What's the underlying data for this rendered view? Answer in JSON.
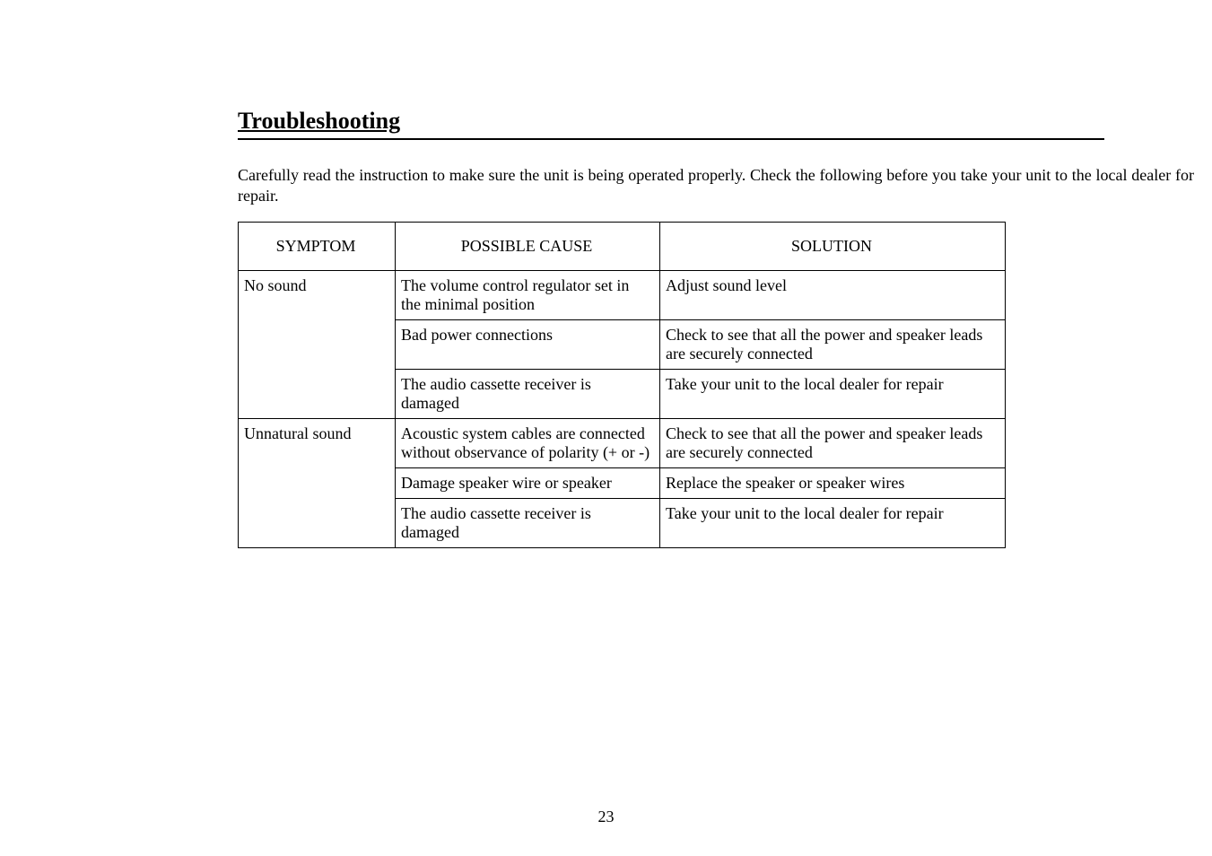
{
  "heading": "Troubleshooting",
  "intro": "Carefully read the instruction to make sure the unit is being operated properly. Check the following before you take your unit to the local dealer for repair.",
  "table": {
    "headers": {
      "symptom": "SYMPTOM",
      "cause": "POSSIBLE CAUSE",
      "solution": "SOLUTION"
    },
    "rows": [
      {
        "symptom": "No sound",
        "cause": "The volume control regulator set in the minimal position",
        "solution": "Adjust sound level"
      },
      {
        "symptom": "",
        "cause": "Bad power connections",
        "solution": "Check to see that all the power and speaker leads are securely connected"
      },
      {
        "symptom": "",
        "cause": "The audio cassette receiver is damaged",
        "solution": "Take your unit to the local dealer for repair"
      },
      {
        "symptom": "Unnatural sound",
        "cause": "Acoustic system cables are connected without observance of polarity (+ or -)",
        "solution": "Check to see that all the power and speaker leads are securely connected"
      },
      {
        "symptom": "",
        "cause": "Damage speaker wire or speaker",
        "solution": "Replace the speaker or speaker wires"
      },
      {
        "symptom": "",
        "cause": "The audio cassette receiver is damaged",
        "solution": "Take your unit to the local dealer for repair"
      }
    ]
  },
  "page_number": "23"
}
